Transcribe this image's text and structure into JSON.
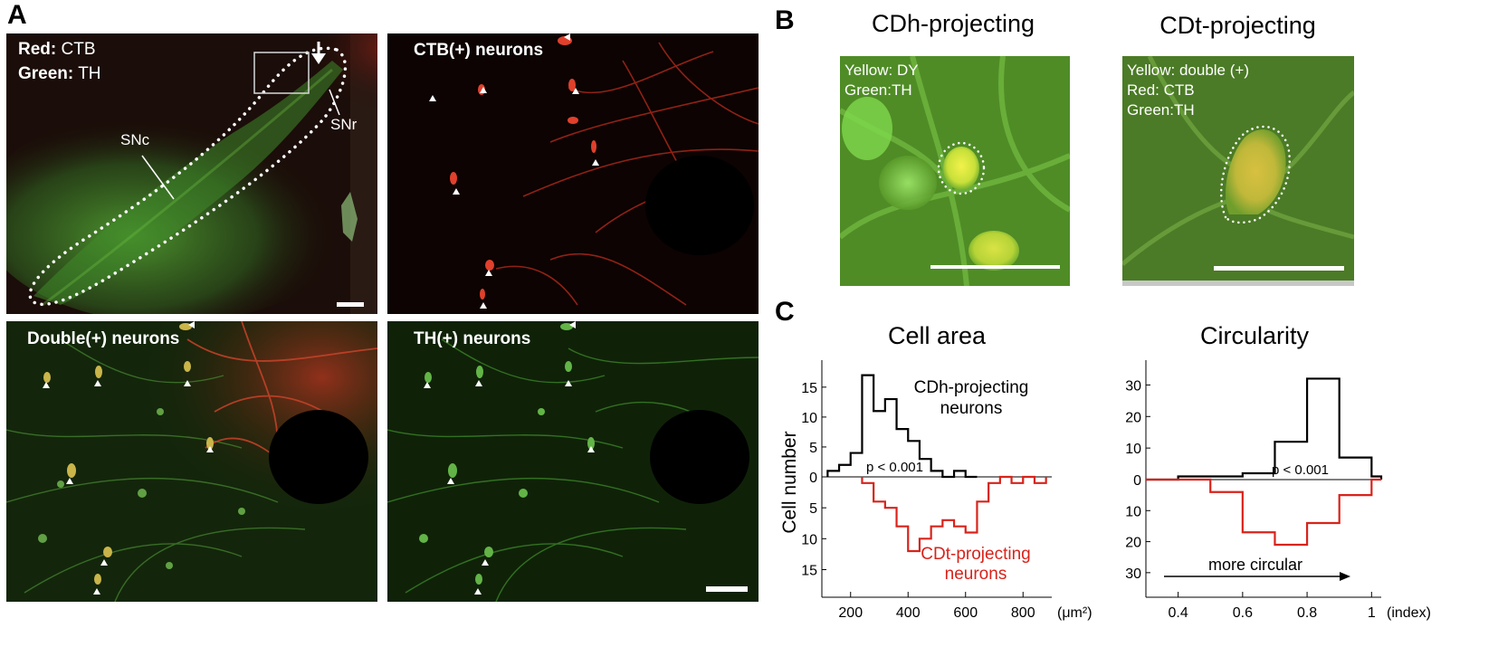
{
  "panels": {
    "a": {
      "letter": "A",
      "overview": {
        "red_label": "Red:",
        "red_value": "CTB",
        "green_label": "Green:",
        "green_value": "TH",
        "snc": "SNc",
        "snr": "SNr"
      },
      "ctb_title": "CTB(+) neurons",
      "double_title": "Double(+) neurons",
      "th_title": "TH(+) neurons"
    },
    "b": {
      "letter": "B",
      "cdh_title": "CDh-projecting",
      "cdt_title": "CDt-projecting",
      "cdh_lines": [
        "Yellow: DY",
        "Green:TH"
      ],
      "cdt_lines": [
        "Yellow: double (+)",
        "Red: CTB",
        "Green:TH"
      ]
    },
    "c": {
      "letter": "C"
    }
  },
  "colors": {
    "red_trace": "#d8231b",
    "black_trace": "#000000",
    "th_green": "#3fa33a",
    "ctb_red": "#d33a25"
  },
  "chart_data": [
    {
      "type": "histogram",
      "title": "Cell area",
      "ylabel": "Cell number",
      "xunit": "(μm²)",
      "xticks": [
        200,
        400,
        600,
        800
      ],
      "xlim": [
        100,
        900
      ],
      "yticks_up": [
        0,
        5,
        10,
        15
      ],
      "yticks_down": [
        5,
        10,
        15
      ],
      "ylim_up": [
        0,
        18
      ],
      "ylim_down": [
        0,
        18
      ],
      "p_value": "p < 0.001",
      "series": [
        {
          "name": "CDh-projecting neurons",
          "direction": "up",
          "bins": [
            [
              120,
              160,
              1
            ],
            [
              160,
              200,
              2
            ],
            [
              200,
              240,
              4
            ],
            [
              240,
              280,
              17
            ],
            [
              280,
              320,
              11
            ],
            [
              320,
              360,
              13
            ],
            [
              360,
              400,
              8
            ],
            [
              400,
              440,
              6
            ],
            [
              440,
              480,
              3
            ],
            [
              480,
              520,
              1
            ],
            [
              520,
              560,
              0
            ],
            [
              560,
              600,
              1
            ],
            [
              600,
              640,
              0
            ]
          ]
        },
        {
          "name": "CDt-projecting neurons",
          "direction": "down",
          "bins": [
            [
              240,
              280,
              1
            ],
            [
              280,
              320,
              4
            ],
            [
              320,
              360,
              5
            ],
            [
              360,
              400,
              8
            ],
            [
              400,
              440,
              12
            ],
            [
              440,
              480,
              10
            ],
            [
              480,
              520,
              8
            ],
            [
              520,
              560,
              7
            ],
            [
              560,
              600,
              8
            ],
            [
              600,
              640,
              9
            ],
            [
              640,
              680,
              4
            ],
            [
              680,
              720,
              1
            ],
            [
              720,
              760,
              0
            ],
            [
              760,
              800,
              1
            ],
            [
              800,
              840,
              0
            ],
            [
              840,
              880,
              1
            ]
          ]
        }
      ]
    },
    {
      "type": "histogram",
      "title": "Circularity",
      "xunit": "(index)",
      "xticks": [
        0.4,
        0.6,
        0.8,
        1
      ],
      "xlim": [
        0.3,
        1.03
      ],
      "yticks_up": [
        0,
        10,
        20,
        30
      ],
      "yticks_down": [
        10,
        20,
        30
      ],
      "ylim_up": [
        0,
        35
      ],
      "ylim_down": [
        0,
        35
      ],
      "p_value": "p < 0.001",
      "annotation": "more circular",
      "series": [
        {
          "name": "CDh-projecting",
          "direction": "up",
          "bins": [
            [
              0.3,
              0.4,
              0
            ],
            [
              0.4,
              0.5,
              1
            ],
            [
              0.5,
              0.6,
              1
            ],
            [
              0.6,
              0.7,
              2
            ],
            [
              0.7,
              0.8,
              12
            ],
            [
              0.8,
              0.9,
              32
            ],
            [
              0.9,
              1.0,
              7
            ],
            [
              1.0,
              1.03,
              1
            ]
          ]
        },
        {
          "name": "CDt-projecting",
          "direction": "down",
          "bins": [
            [
              0.3,
              0.5,
              0
            ],
            [
              0.5,
              0.6,
              4
            ],
            [
              0.6,
              0.7,
              17
            ],
            [
              0.7,
              0.8,
              21
            ],
            [
              0.8,
              0.9,
              14
            ],
            [
              0.9,
              1.0,
              5
            ],
            [
              1.0,
              1.03,
              0
            ]
          ]
        }
      ]
    }
  ]
}
